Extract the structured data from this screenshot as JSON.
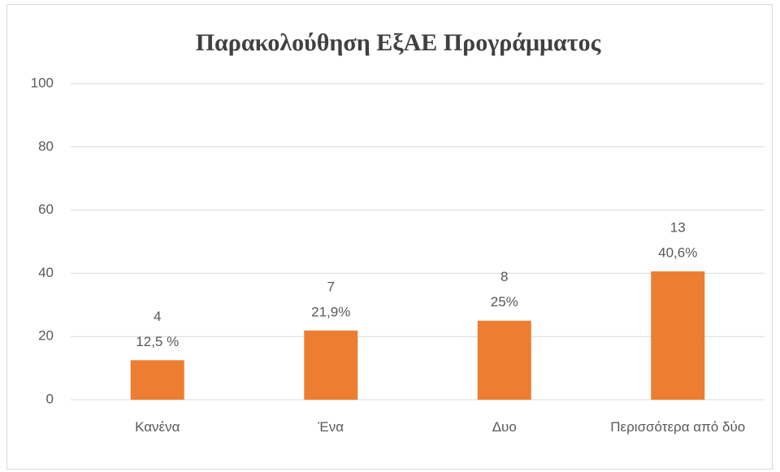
{
  "chart_data": {
    "type": "bar",
    "title": "Παρακολούθηση ΕξΑΕ Προγράμματος",
    "categories": [
      "Κανένα",
      "Ένα",
      "Δυο",
      "Περισσότερα από δύο"
    ],
    "values": [
      12.5,
      21.9,
      25,
      40.6
    ],
    "value_labels": [
      "12,5 %",
      "21,9%",
      "25%",
      "40,6%"
    ],
    "counts": [
      4,
      7,
      8,
      13
    ],
    "color": "#ed7d31",
    "ylim": [
      0,
      100
    ],
    "yticks": [
      0,
      20,
      40,
      60,
      80,
      100
    ],
    "grid": true
  }
}
